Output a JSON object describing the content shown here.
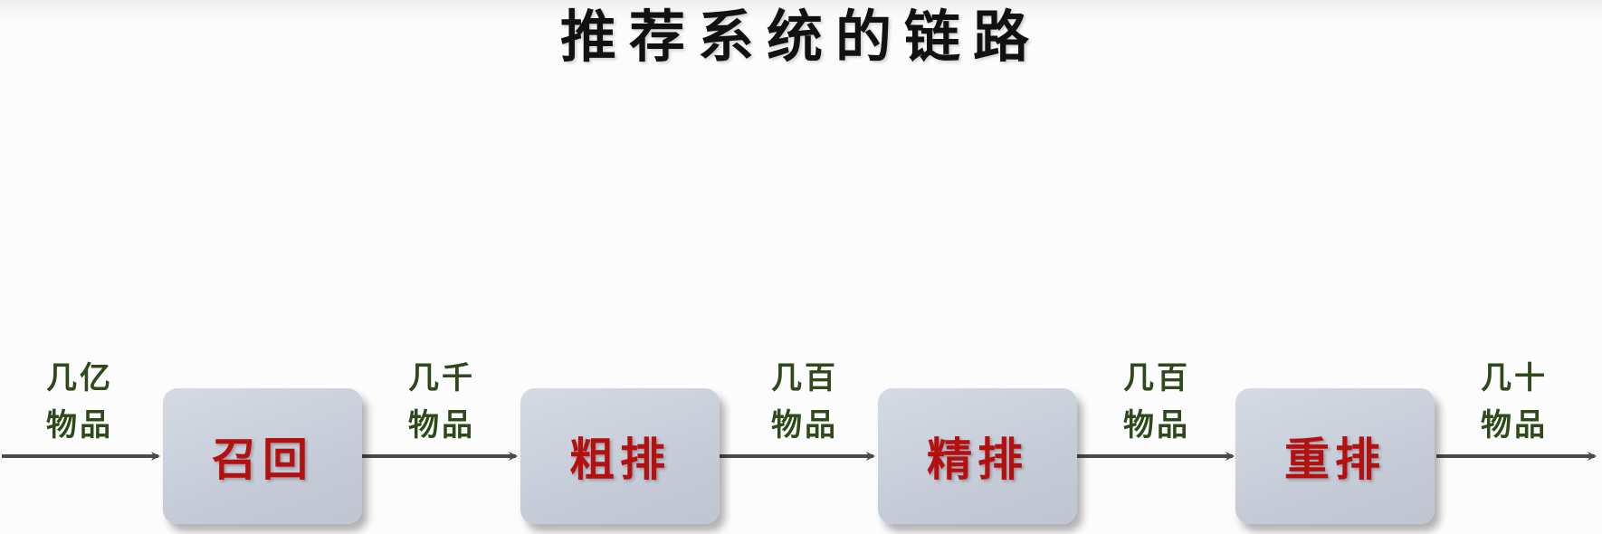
{
  "title": "推荐系统的链路",
  "stages": [
    {
      "label": "召回"
    },
    {
      "label": "粗排"
    },
    {
      "label": "精排"
    },
    {
      "label": "重排"
    }
  ],
  "counts": [
    {
      "line1": "几亿",
      "line2": "物品"
    },
    {
      "line1": "几千",
      "line2": "物品"
    },
    {
      "line1": "几百",
      "line2": "物品"
    },
    {
      "line1": "几百",
      "line2": "物品"
    },
    {
      "line1": "几十",
      "line2": "物品"
    }
  ],
  "colors": {
    "stage_text": "#b3100f",
    "count_text": "#2e4a1c",
    "arrow": "#4a4a4a",
    "box_fill": "#c8cfda"
  }
}
